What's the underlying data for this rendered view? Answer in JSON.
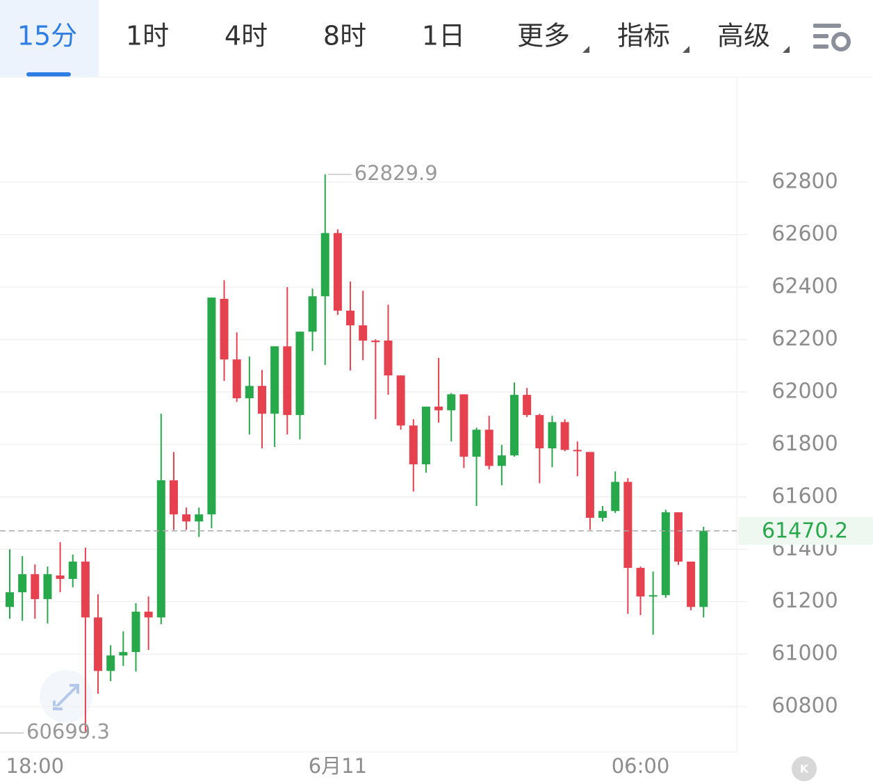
{
  "tabs": {
    "items": [
      "15分",
      "1时",
      "4时",
      "8时",
      "1日",
      "更多",
      "指标",
      "高级"
    ],
    "active": 0
  },
  "chart_data": {
    "type": "candlestick",
    "categories": [
      null,
      null,
      "18:00",
      null,
      null,
      null,
      null,
      null,
      null,
      null,
      null,
      null,
      null,
      null,
      null,
      null,
      null,
      null,
      null,
      null,
      null,
      null,
      null,
      null,
      null,
      null,
      "6月11",
      null,
      null,
      null,
      null,
      null,
      null,
      null,
      null,
      null,
      null,
      null,
      null,
      null,
      null,
      null,
      null,
      null,
      null,
      null,
      null,
      null,
      null,
      null,
      "06:00",
      null,
      null,
      null,
      null,
      null
    ],
    "open": [
      61180,
      61236,
      61305,
      61210,
      61300,
      61287,
      61353,
      61140,
      60936,
      60995,
      61008,
      61162,
      61140,
      61663,
      61533,
      61506,
      61533,
      62355,
      62124,
      61976,
      62023,
      61917,
      62174,
      61912,
      62230,
      62365,
      62606,
      62310,
      62254,
      62196,
      62196,
      62063,
      61872,
      61724,
      61944,
      61930,
      61991,
      61753,
      61856,
      61718,
      61758,
      61989,
      61912,
      61785,
      61885,
      61779,
      61771,
      61520,
      61546,
      61657,
      61329,
      61220,
      61225,
      61541,
      61353,
      61180
    ],
    "high": [
      61400,
      61374,
      61342,
      61334,
      61427,
      61380,
      61406,
      61228,
      61034,
      61087,
      61194,
      61220,
      61917,
      61771,
      61559,
      61559,
      62360,
      62426,
      62227,
      62135,
      62084,
      62174,
      62400,
      62230,
      62394,
      62829.9,
      62620,
      62421,
      62386,
      62201,
      62333,
      62063,
      61896,
      61944,
      62130,
      61996,
      61991,
      61864,
      61909,
      61798,
      62036,
      62015,
      61917,
      61909,
      61896,
      61811,
      61771,
      61565,
      61697,
      61671,
      61334,
      61315,
      61551,
      61541,
      61353,
      61486
    ],
    "low": [
      61135,
      61127,
      61135,
      61117,
      61236,
      61255,
      60699.3,
      60849,
      60897,
      60955,
      60934,
      61016,
      61114,
      61474,
      61474,
      61447,
      61480,
      62042,
      61962,
      61838,
      61785,
      61790,
      61838,
      61819,
      62156,
      62103,
      62294,
      62082,
      62121,
      61896,
      61989,
      61856,
      61620,
      61692,
      61883,
      61811,
      61710,
      61565,
      61705,
      61644,
      61753,
      61904,
      61652,
      61713,
      61774,
      61679,
      61474,
      61506,
      61538,
      61154,
      61149,
      61074,
      61215,
      61340,
      61167,
      61140
    ],
    "close": [
      61236,
      61305,
      61210,
      61305,
      61287,
      61353,
      61140,
      60936,
      60995,
      61008,
      61162,
      61140,
      61663,
      61533,
      61506,
      61533,
      62360,
      62124,
      61976,
      62023,
      61917,
      62174,
      61912,
      62230,
      62365,
      62606,
      62310,
      62254,
      62196,
      62190,
      62063,
      61872,
      61724,
      61944,
      61930,
      61991,
      61753,
      61856,
      61718,
      61758,
      61989,
      61912,
      61785,
      61885,
      61779,
      61774,
      61520,
      61546,
      61657,
      61329,
      61220,
      61225,
      61541,
      61353,
      61180,
      61470.2
    ],
    "up_color": "#27a84a",
    "down_color": "#e6414e",
    "ylim": [
      60632,
      63198
    ],
    "yticks": [
      60800,
      61000,
      61200,
      61400,
      61600,
      61800,
      62000,
      62200,
      62400,
      62600,
      62800
    ],
    "grid": true,
    "max_label": 62829.9,
    "min_label": 60699.3,
    "last_price": 61470.2
  }
}
